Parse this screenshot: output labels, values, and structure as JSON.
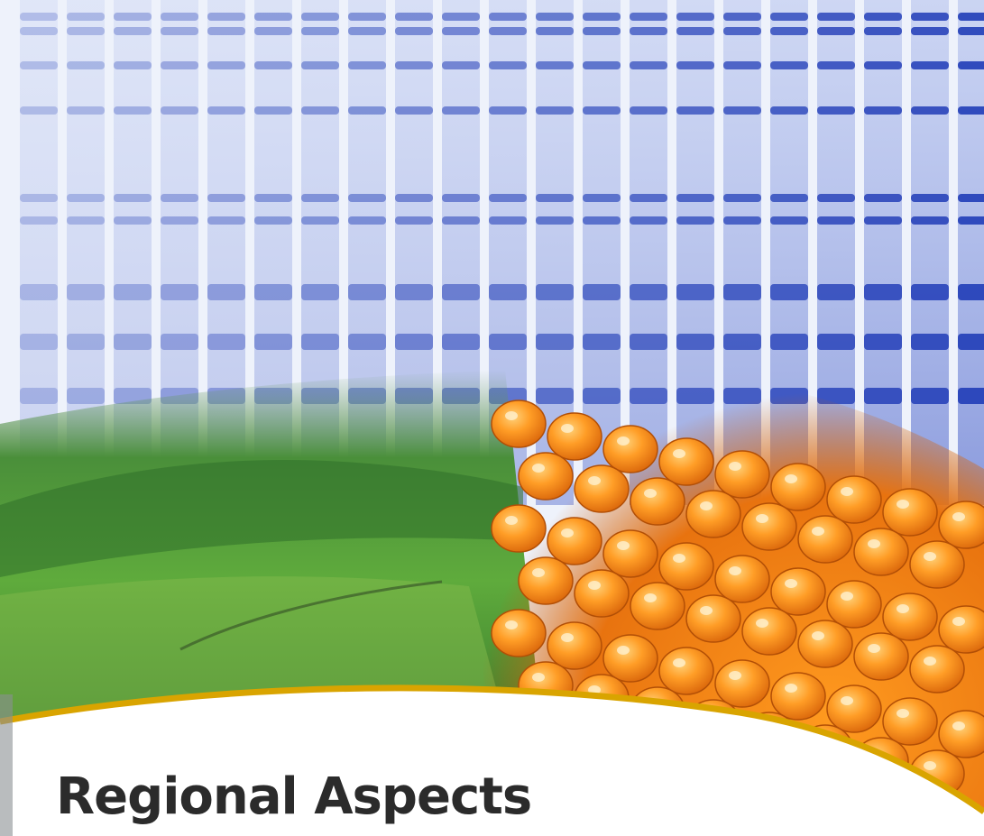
{
  "document": {
    "title": "Regional Aspects"
  },
  "colors": {
    "gel_band": "#2a4fc4",
    "gel_background": "#eef2fb",
    "field_green": "#3f9a2c",
    "corn_orange": "#f28a18",
    "accent_gold": "#d9a400",
    "title_text": "#2b2b2b"
  },
  "visual_elements": [
    "electrophoresis-gel-photo",
    "green-landscape-photo",
    "corn-kernels-photo",
    "gold-accent-curve"
  ]
}
